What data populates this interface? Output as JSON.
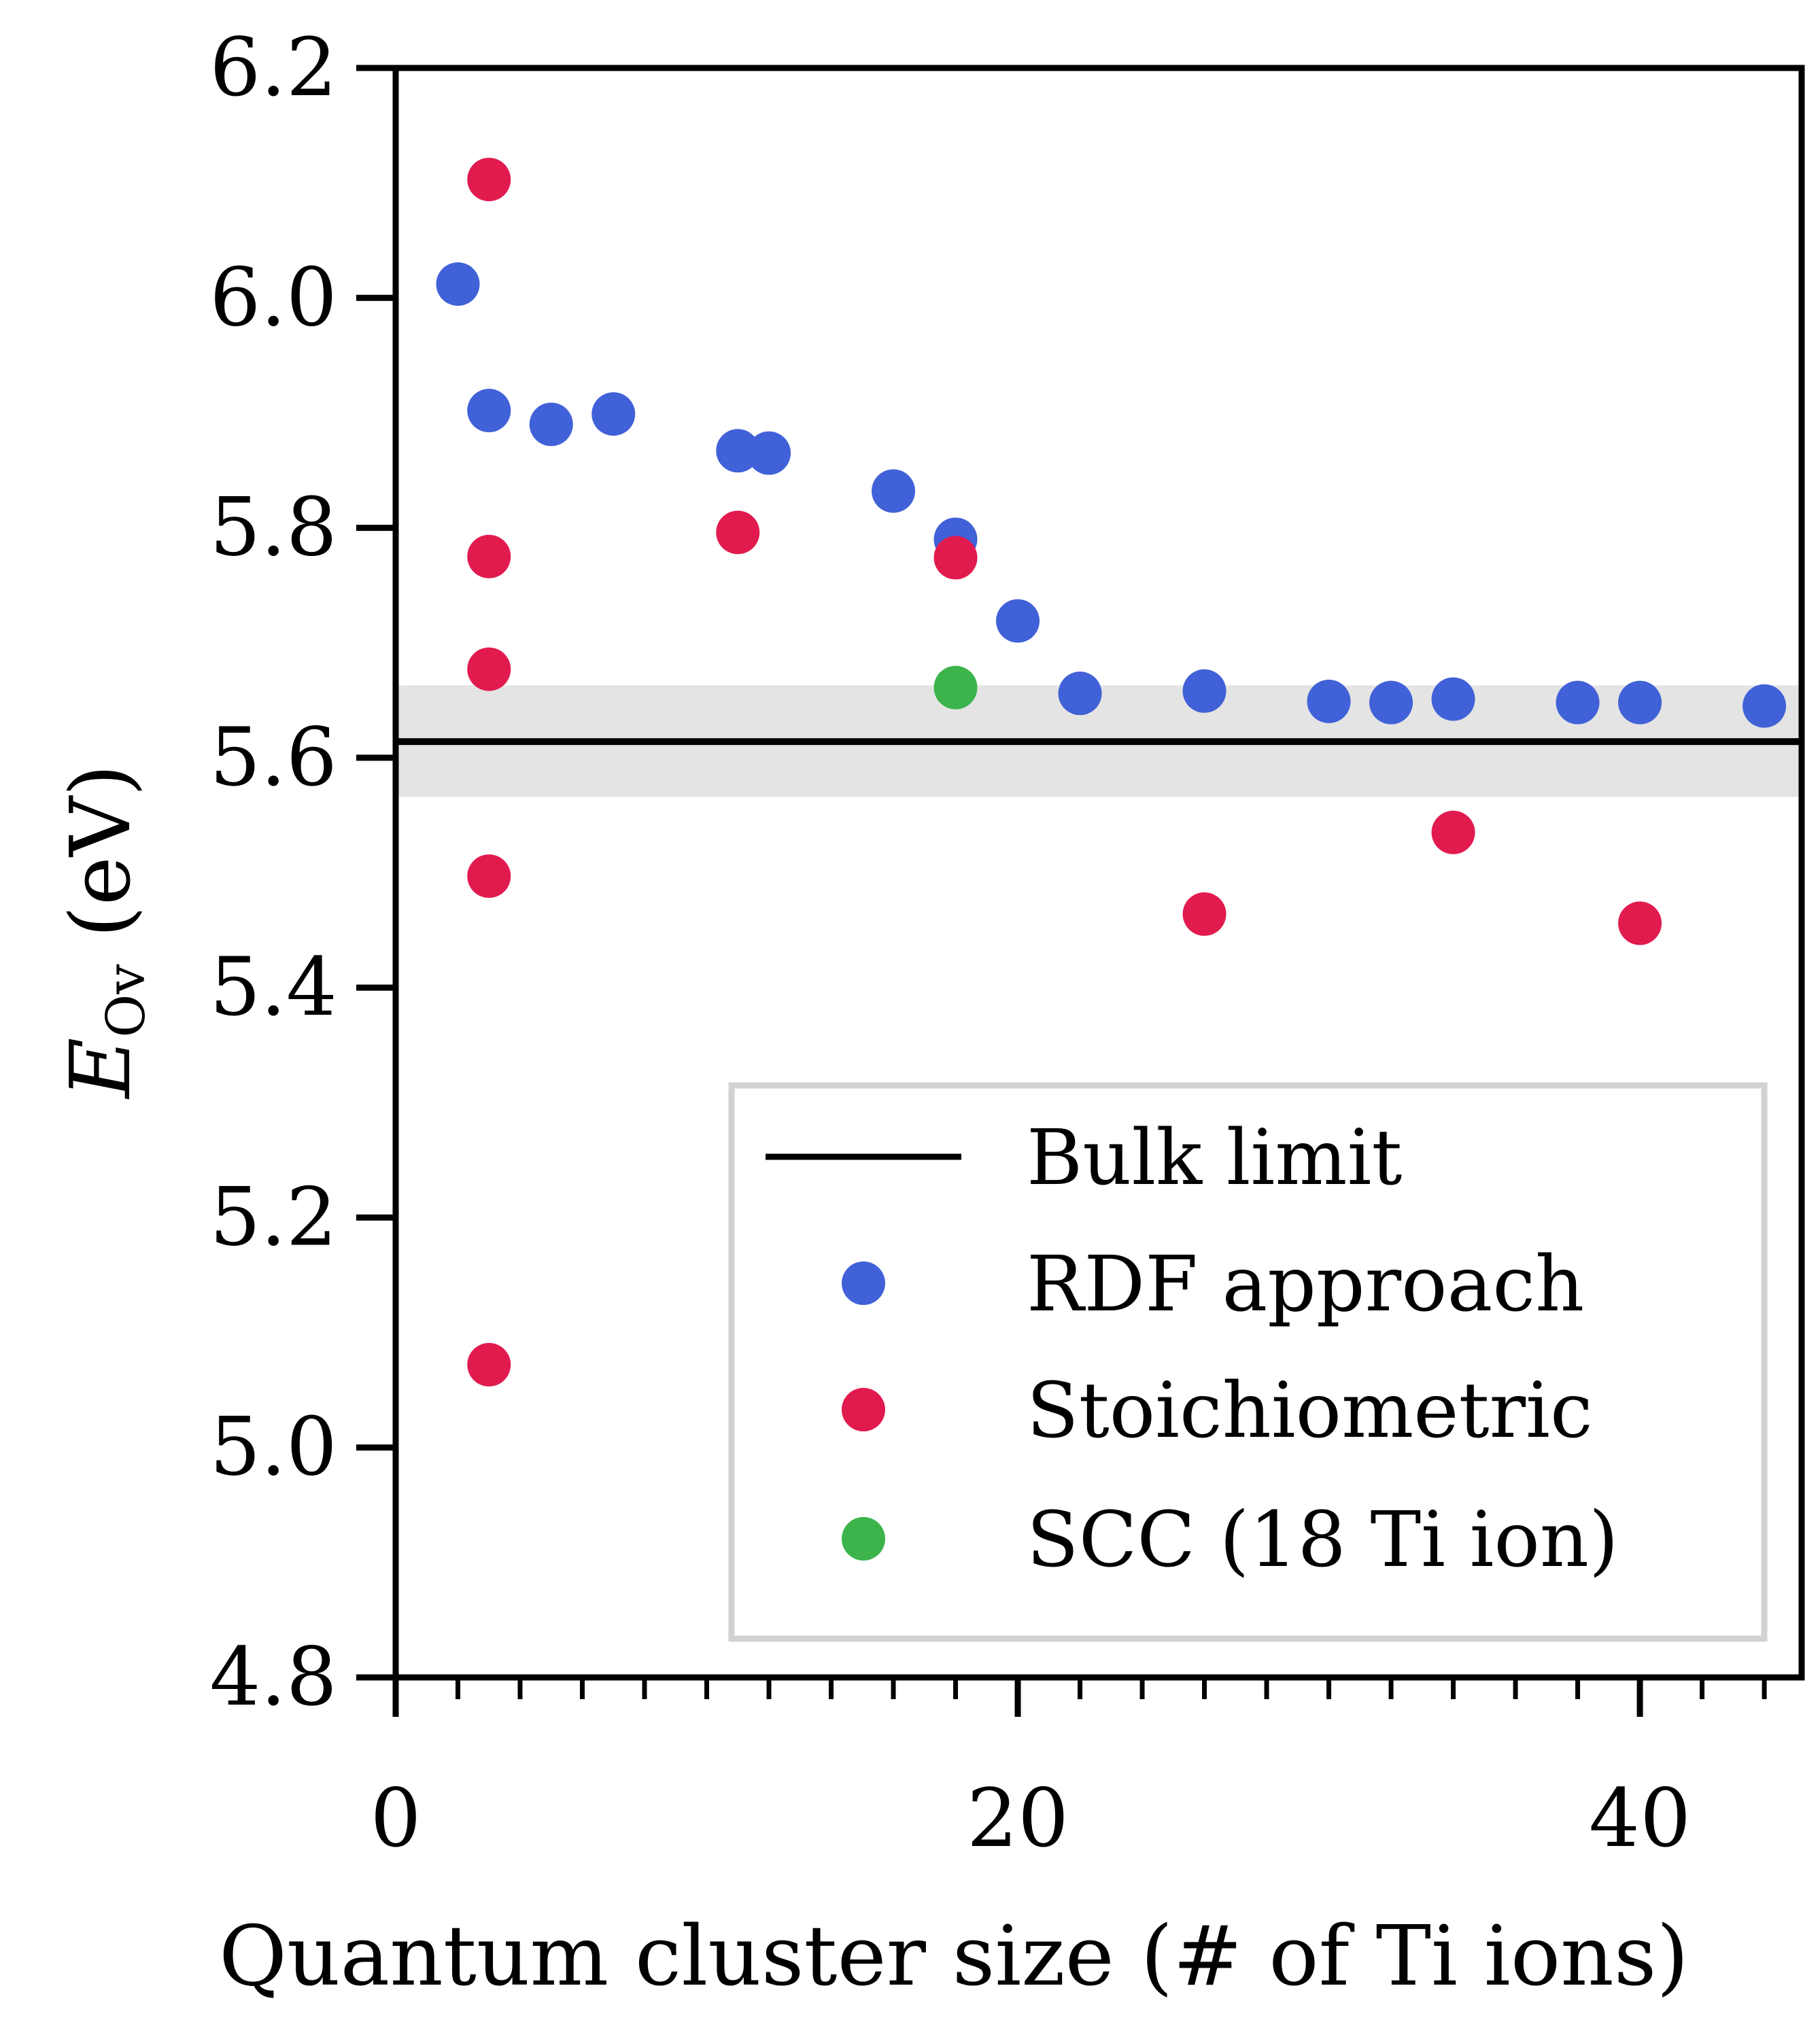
{
  "chart_data": {
    "type": "scatter",
    "xlabel": "Quantum cluster size (# of Ti ions)",
    "ylabel": {
      "main": "E",
      "subscript": "Ov",
      "unit": "(eV)"
    },
    "xlim": [
      0,
      45.2
    ],
    "ylim": [
      4.8,
      6.2
    ],
    "xticks": [
      0,
      20,
      40
    ],
    "xtick_labels": [
      "0",
      "20",
      "40"
    ],
    "x_minor_ticks": [
      2,
      4,
      6,
      8,
      10,
      12,
      14,
      16,
      18,
      22,
      24,
      26,
      28,
      30,
      32,
      34,
      36,
      38,
      42,
      44
    ],
    "yticks": [
      4.8,
      5.0,
      5.2,
      5.4,
      5.6,
      5.8,
      6.0,
      6.2
    ],
    "ytick_labels": [
      "4.8",
      "5.0",
      "5.2",
      "5.4",
      "5.6",
      "5.8",
      "6.0",
      "6.2"
    ],
    "grid": false,
    "legend_position": "lower-right",
    "bulk_limit": {
      "name": "Bulk limit",
      "value": 5.614,
      "band": [
        5.566,
        5.663
      ],
      "color": "#000000",
      "band_color": "#e4e4e4"
    },
    "series": [
      {
        "name": "RDF approach",
        "color": "#4161d8",
        "x": [
          2,
          3,
          5,
          7,
          11,
          12,
          16,
          18,
          20,
          22,
          26,
          30,
          32,
          34,
          38,
          40,
          44
        ],
        "y": [
          6.012,
          5.902,
          5.89,
          5.899,
          5.867,
          5.865,
          5.832,
          5.79,
          5.719,
          5.656,
          5.658,
          5.649,
          5.648,
          5.651,
          5.648,
          5.648,
          5.645
        ]
      },
      {
        "name": "Stoichiometric",
        "color": "#e21b4f",
        "x": [
          3,
          3,
          3,
          3,
          3,
          11,
          18,
          26,
          34,
          40
        ],
        "y": [
          6.103,
          5.775,
          5.677,
          5.497,
          5.072,
          5.796,
          5.774,
          5.464,
          5.535,
          5.456
        ]
      },
      {
        "name": "SCC (18 Ti ion)",
        "color": "#3cb44b",
        "x": [
          18
        ],
        "y": [
          5.661
        ]
      }
    ]
  }
}
